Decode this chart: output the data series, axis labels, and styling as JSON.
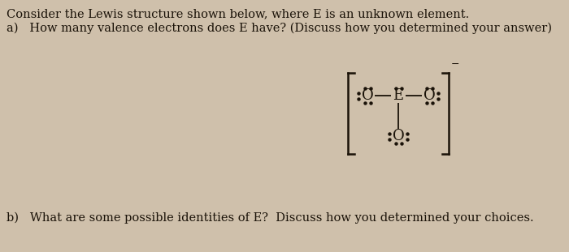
{
  "bg_color": "#cfc0ab",
  "text_color": "#1a1208",
  "line1": "Consider the Lewis structure shown below, where E is an unknown element.",
  "line2_a": "a)   ",
  "line2_b": "How many valence electrons does E have? (Discuss how you determined your answer)",
  "line_b_a": "b)  ",
  "line_b_b": "What are some possible identities of E?  Discuss how you determined your choices.",
  "fig_width": 7.0,
  "fig_height": 3.11,
  "dpi": 100
}
